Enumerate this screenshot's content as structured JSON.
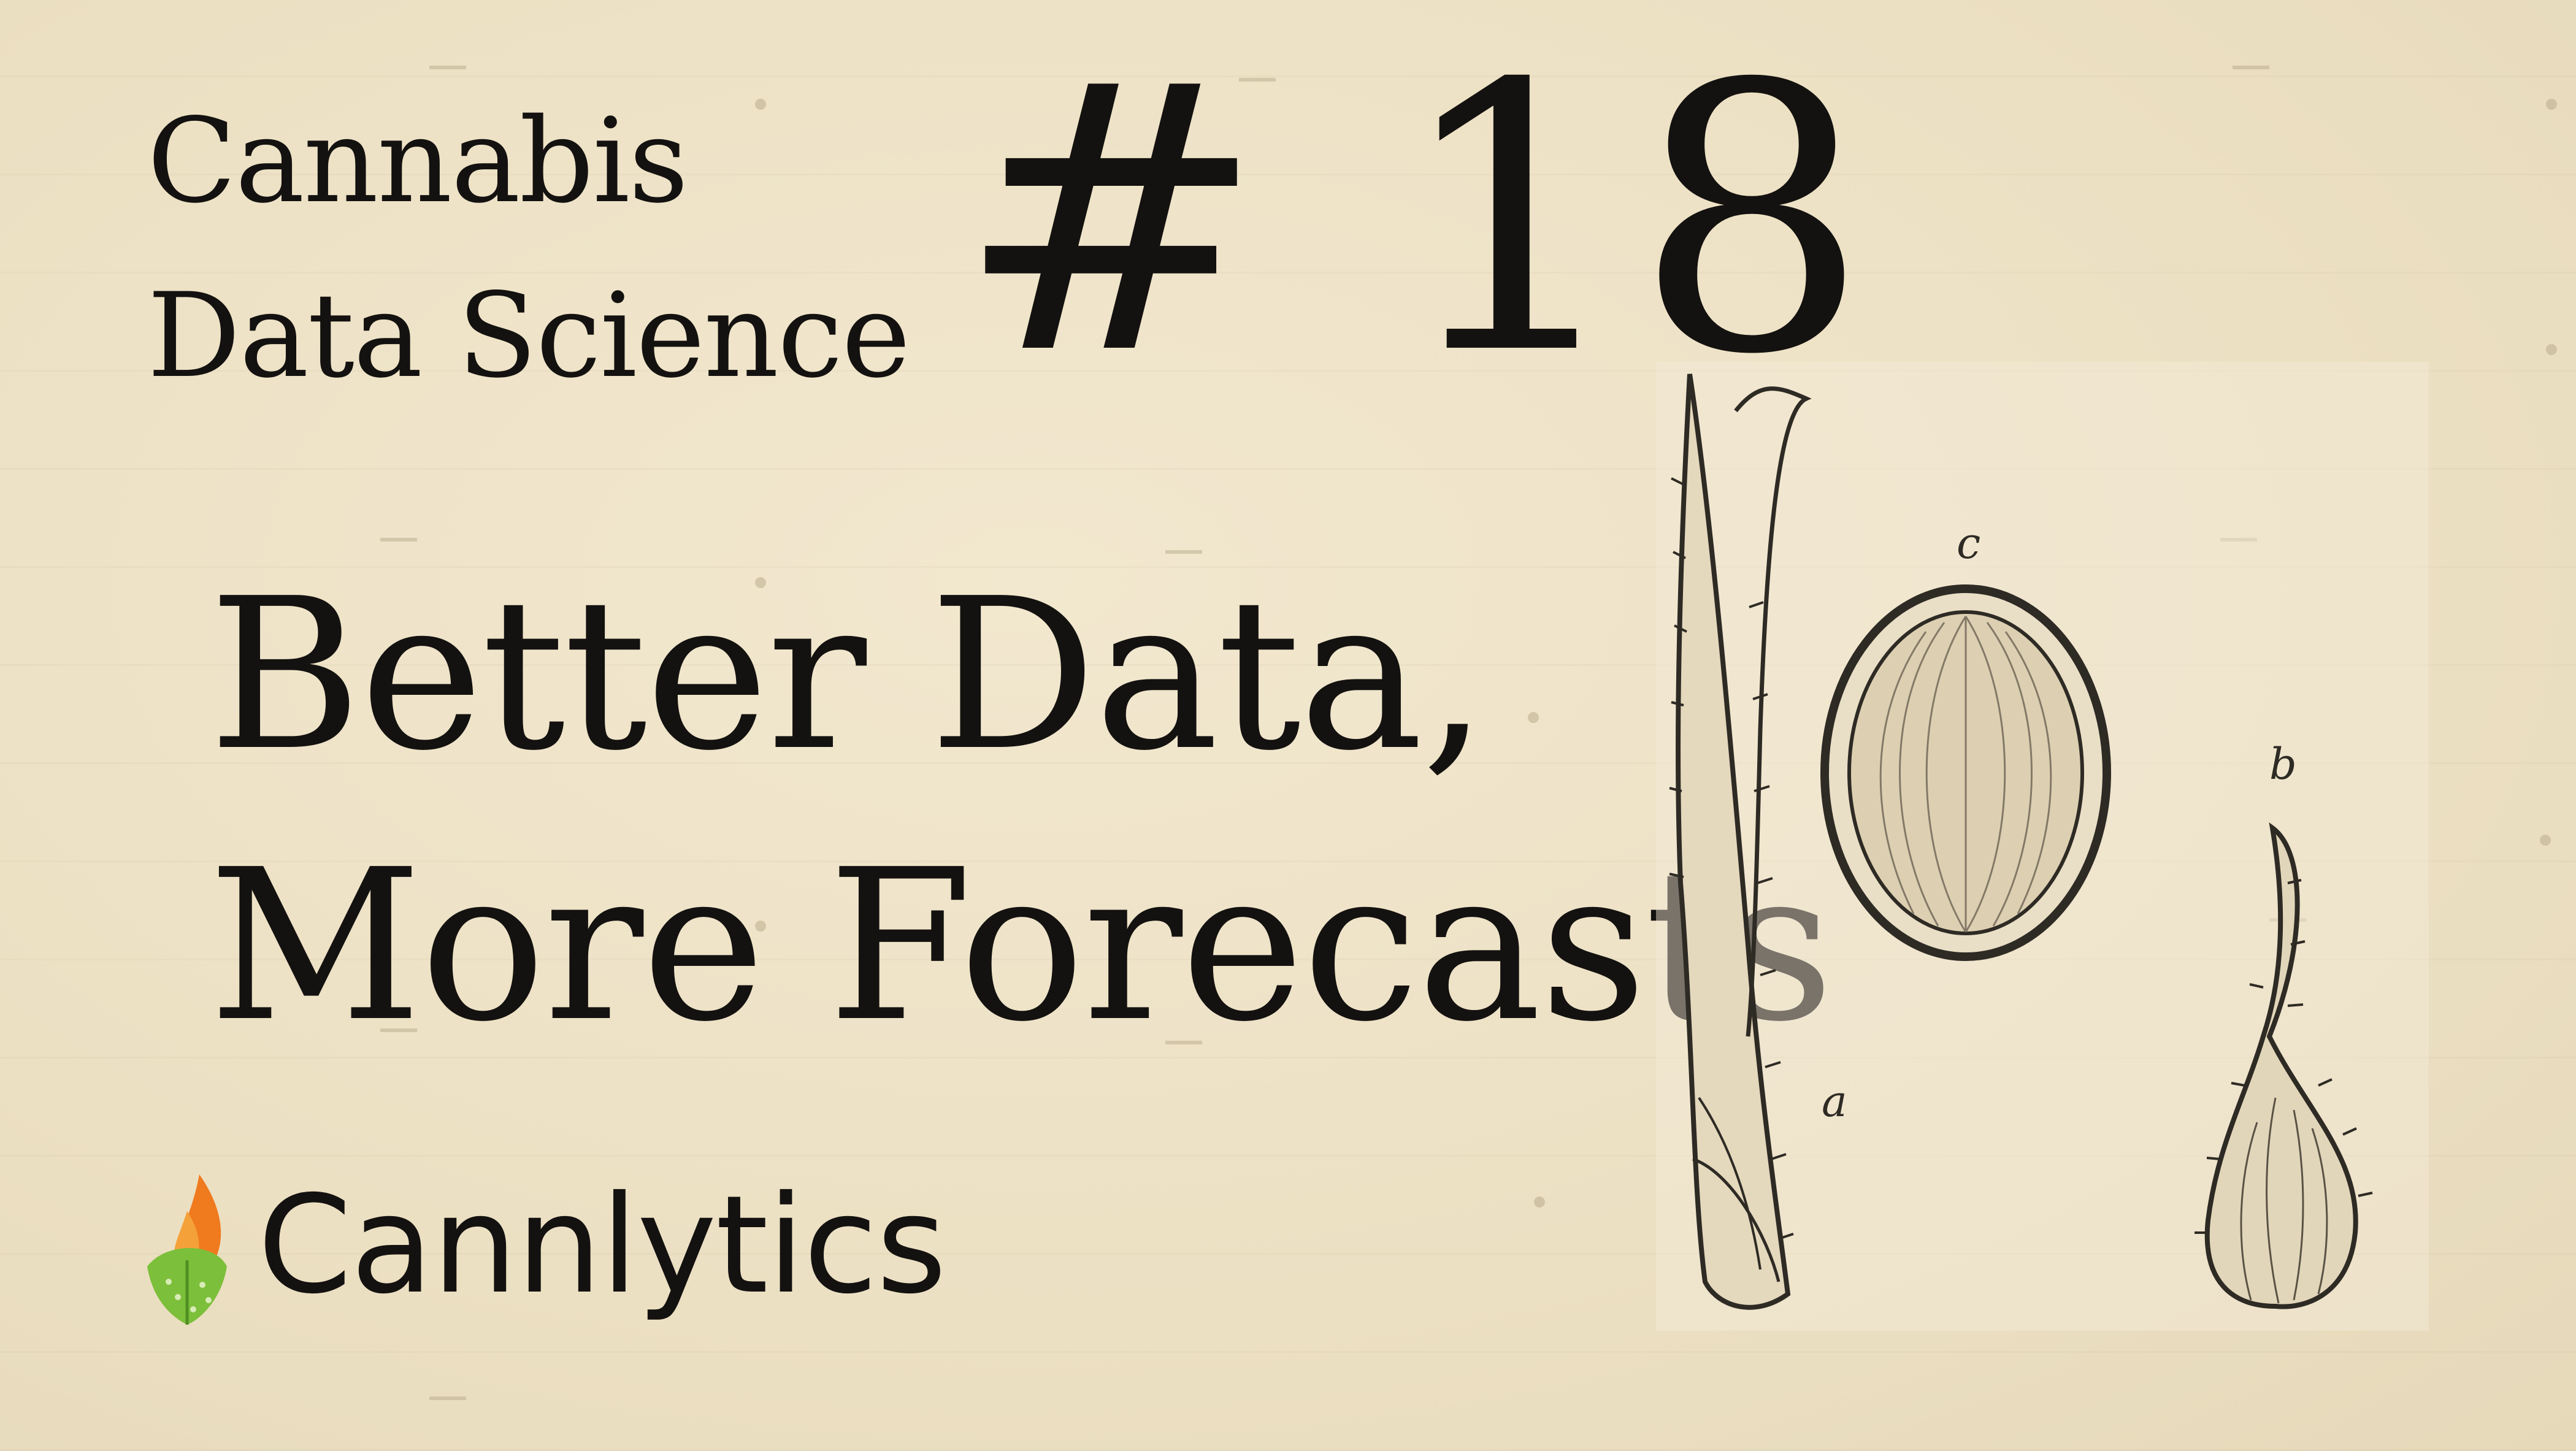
{
  "series_label": [
    "Cannabis",
    "Data Science"
  ],
  "episode_number": "# 18",
  "headline": [
    "Better Data,",
    "More Forecasts"
  ],
  "brand": {
    "name": "Cannlytics",
    "logo_icon": "flame-leaf-icon"
  },
  "illustration": {
    "labels": {
      "a": "a",
      "b": "b",
      "c": "c"
    },
    "icon": "cannabis-seed-engraving-icon"
  },
  "colors": {
    "background": "#efe4c9",
    "text": "#141210",
    "logo_orange": "#f07a1e",
    "logo_green": "#7cbf3a"
  }
}
